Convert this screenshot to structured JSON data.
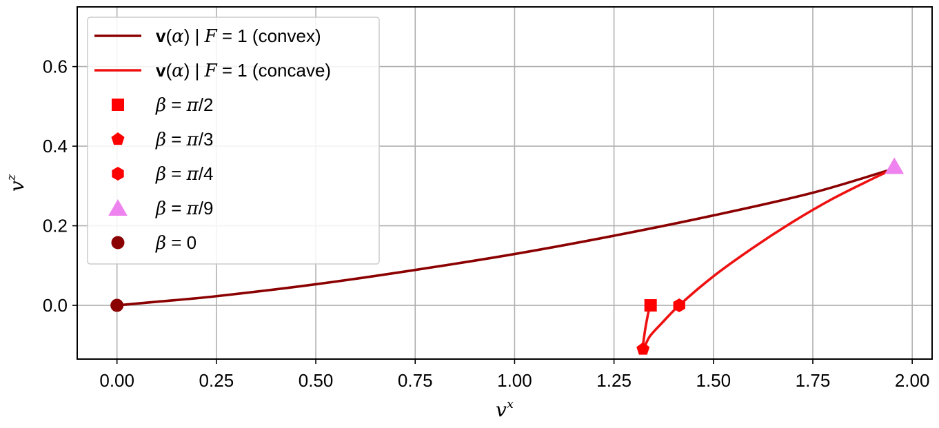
{
  "chart_data": {
    "type": "line",
    "xlabel": "v",
    "xlabel_sup": "x",
    "ylabel": "v",
    "ylabel_sup": "z",
    "xlim": [
      -0.1,
      2.05
    ],
    "ylim": [
      -0.135,
      0.75
    ],
    "xticks": [
      0.0,
      0.25,
      0.5,
      0.75,
      1.0,
      1.25,
      1.5,
      1.75,
      2.0
    ],
    "xtick_labels": [
      "0.00",
      "0.25",
      "0.50",
      "0.75",
      "1.00",
      "1.25",
      "1.50",
      "1.75",
      "2.00"
    ],
    "yticks": [
      0.0,
      0.2,
      0.4,
      0.6
    ],
    "ytick_labels": [
      "0.0",
      "0.2",
      "0.4",
      "0.6"
    ],
    "grid": true,
    "legend_position": "upper-left",
    "series": [
      {
        "name": "v(α) | F = 1 (convex)",
        "name_parts": [
          "v",
          "(",
          "α",
          ") | ",
          "F",
          " = 1 (convex)"
        ],
        "color": "#8b0000",
        "x": [
          0.0,
          0.1,
          0.25,
          0.5,
          0.75,
          1.0,
          1.25,
          1.5,
          1.75,
          1.955
        ],
        "y": [
          0.0,
          0.009,
          0.023,
          0.053,
          0.089,
          0.129,
          0.175,
          0.226,
          0.283,
          0.344
        ]
      },
      {
        "name": "v(α) | F = 1 (concave)",
        "name_parts": [
          "v",
          "(",
          "α",
          ") | ",
          "F",
          " = 1 (concave)"
        ],
        "color": "#ee1111",
        "x": [
          1.34,
          1.333,
          1.327,
          1.323,
          1.34,
          1.37,
          1.414,
          1.5,
          1.6,
          1.7,
          1.8,
          1.9,
          1.955
        ],
        "y": [
          0.0,
          -0.035,
          -0.07,
          -0.11,
          -0.078,
          -0.045,
          0.0,
          0.073,
          0.145,
          0.21,
          0.268,
          0.318,
          0.344
        ]
      }
    ],
    "markers": [
      {
        "label": "β = π/2",
        "label_parts": [
          "β",
          " = ",
          "π",
          "/2"
        ],
        "shape": "square",
        "color": "#ff0000",
        "x": 1.342,
        "y": 0.0
      },
      {
        "label": "β = π/3",
        "label_parts": [
          "β",
          " = ",
          "π",
          "/3"
        ],
        "shape": "pentagon",
        "color": "#ff0000",
        "x": 1.323,
        "y": -0.11
      },
      {
        "label": "β = π/4",
        "label_parts": [
          "β",
          " = ",
          "π",
          "/4"
        ],
        "shape": "hexagon",
        "color": "#ff0000",
        "x": 1.414,
        "y": 0.0
      },
      {
        "label": "β = π/9",
        "label_parts": [
          "β",
          " = ",
          "π",
          "/9"
        ],
        "shape": "triangle",
        "color": "#ee82ee",
        "x": 1.955,
        "y": 0.344
      },
      {
        "label": "β = 0",
        "label_parts": [
          "β",
          " = 0",
          "",
          ""
        ],
        "shape": "circle",
        "color": "#8b0000",
        "x": 0.0,
        "y": 0.0
      }
    ]
  }
}
